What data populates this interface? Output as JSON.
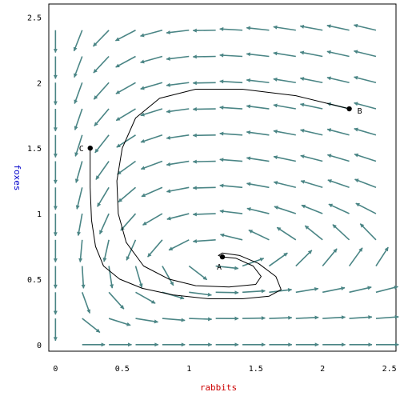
{
  "chart_data": {
    "type": "phase-portrait",
    "xlabel": "rabbits",
    "ylabel": "foxes",
    "xlim": [
      -0.05,
      2.55
    ],
    "ylim": [
      -0.05,
      2.6
    ],
    "x_ticks": [
      "0",
      "0.5",
      "1",
      "1.5",
      "2",
      "2.5"
    ],
    "y_ticks": [
      "0",
      "0.5",
      "1",
      "1.5",
      "2",
      "2.5"
    ],
    "colors": {
      "arrow": "#4a8585",
      "xlabel": "#cc0000",
      "ylabel": "#0000cc",
      "curve": "#000000"
    },
    "points": [
      {
        "label": "A",
        "x": 1.25,
        "y": 0.67
      },
      {
        "label": "B",
        "x": 2.2,
        "y": 1.8
      },
      {
        "label": "C",
        "x": 0.26,
        "y": 1.5
      }
    ],
    "trajectories": [
      [
        [
          2.2,
          1.8
        ],
        [
          1.8,
          1.9
        ],
        [
          1.4,
          1.95
        ],
        [
          1.05,
          1.95
        ],
        [
          0.78,
          1.88
        ],
        [
          0.6,
          1.73
        ],
        [
          0.5,
          1.5
        ],
        [
          0.46,
          1.25
        ],
        [
          0.47,
          1.0
        ],
        [
          0.53,
          0.78
        ],
        [
          0.66,
          0.6
        ],
        [
          0.85,
          0.5
        ],
        [
          1.05,
          0.45
        ],
        [
          1.3,
          0.44
        ],
        [
          1.5,
          0.46
        ],
        [
          1.54,
          0.52
        ],
        [
          1.48,
          0.6
        ],
        [
          1.35,
          0.66
        ],
        [
          1.25,
          0.67
        ]
      ],
      [
        [
          0.26,
          1.5
        ],
        [
          0.26,
          1.2
        ],
        [
          0.27,
          0.95
        ],
        [
          0.3,
          0.75
        ],
        [
          0.36,
          0.6
        ],
        [
          0.48,
          0.5
        ],
        [
          0.65,
          0.43
        ],
        [
          0.88,
          0.38
        ],
        [
          1.15,
          0.35
        ],
        [
          1.4,
          0.35
        ],
        [
          1.6,
          0.37
        ],
        [
          1.69,
          0.42
        ],
        [
          1.65,
          0.52
        ],
        [
          1.52,
          0.62
        ],
        [
          1.38,
          0.68
        ],
        [
          1.25,
          0.7
        ],
        [
          1.22,
          0.68
        ],
        [
          1.25,
          0.67
        ]
      ]
    ]
  }
}
